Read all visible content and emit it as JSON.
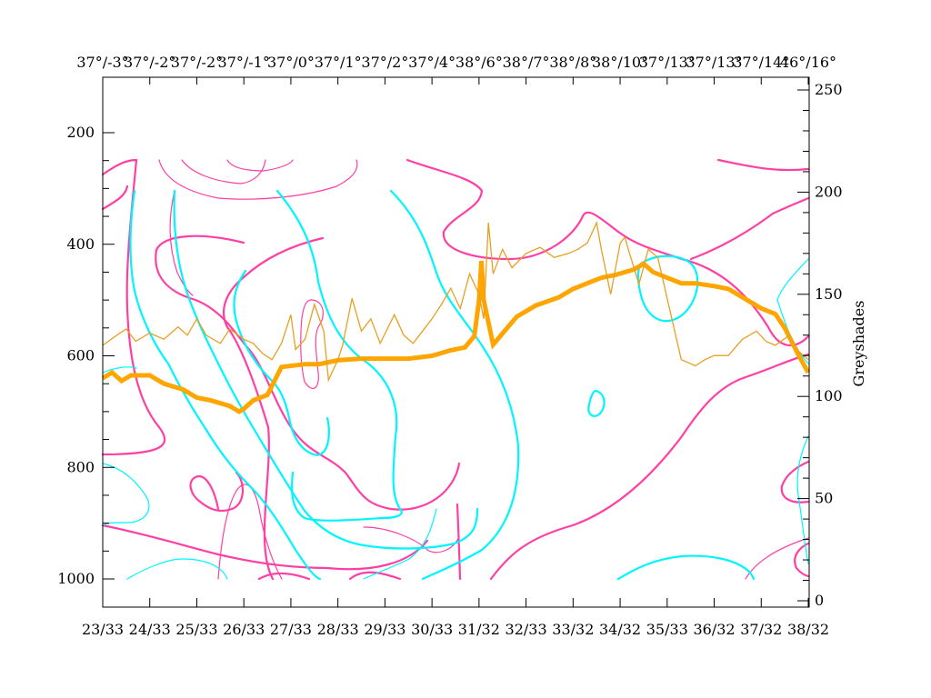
{
  "chart_data": {
    "type": "line",
    "title": "",
    "top_axis_labels": [
      "37°/-3°",
      "37°/-2°",
      "37°/-2°",
      "37°/-1°",
      "37°/0°",
      "37°/1°",
      "37°/2°",
      "37°/4°",
      "38°/6°",
      "38°/7°",
      "38°/8°",
      "38°/10°",
      "37°/13°",
      "37°/13°",
      "37°/14°",
      "46°/16°"
    ],
    "x_tick_labels": [
      "23/33",
      "24/33",
      "25/33",
      "26/33",
      "27/33",
      "28/33",
      "29/33",
      "30/33",
      "31/32",
      "32/33",
      "33/32",
      "34/32",
      "35/33",
      "36/32",
      "37/32",
      "38/32"
    ],
    "xlim": [
      23,
      38
    ],
    "left_axis": {
      "label": "",
      "ticks": [
        200,
        400,
        600,
        800,
        1000
      ],
      "lim": [
        1050,
        130
      ]
    },
    "right_axis": {
      "label": "Greyshades",
      "ticks": [
        0,
        50,
        100,
        150,
        200,
        250
      ],
      "lim": [
        0,
        255
      ]
    },
    "series": [
      {
        "color": "#ffa500",
        "axis": "left",
        "x": [
          23,
          23.2,
          23.4,
          23.6,
          24,
          24.3,
          24.7,
          25,
          25.3,
          25.7,
          25.9,
          26,
          26.2,
          26.5,
          26.8,
          27.3,
          27.6,
          28,
          28.5,
          29,
          29.5,
          30,
          30.4,
          30.7,
          30.9,
          31,
          31.05,
          31.1,
          31.3,
          31.5,
          31.8,
          32.2,
          32.7,
          33,
          33.3,
          33.6,
          33.9,
          34.3,
          34.5,
          34.7,
          35.3,
          35.6,
          36,
          36.3,
          36.5,
          36.8,
          37,
          37.3,
          37.5,
          37.8,
          38
        ],
        "y": [
          640,
          630,
          645,
          635,
          635,
          650,
          660,
          675,
          680,
          690,
          700,
          695,
          680,
          670,
          620,
          615,
          615,
          608,
          605,
          605,
          605,
          600,
          590,
          585,
          565,
          500,
          430,
          500,
          580,
          560,
          530,
          510,
          495,
          480,
          470,
          460,
          455,
          445,
          435,
          450,
          470,
          470,
          475,
          480,
          490,
          505,
          515,
          525,
          550,
          600,
          630
        ]
      },
      {
        "color": "#e6a023",
        "axis": "right",
        "x": [
          23,
          23.3,
          23.5,
          23.7,
          24,
          24.3,
          24.6,
          24.8,
          25,
          25.2,
          25.5,
          25.7,
          26,
          26.2,
          26.4,
          26.6,
          26.8,
          27,
          27.1,
          27.3,
          27.5,
          27.7,
          27.8,
          28,
          28.1,
          28.3,
          28.5,
          28.7,
          28.9,
          29.2,
          29.4,
          29.6,
          29.8,
          30,
          30.2,
          30.4,
          30.6,
          30.8,
          31,
          31.1,
          31.2,
          31.3,
          31.5,
          31.7,
          32,
          32.3,
          32.6,
          32.9,
          33.1,
          33.3,
          33.5,
          33.6,
          33.8,
          34,
          34.1,
          34.2,
          34.4,
          34.6,
          34.8,
          35,
          35.3,
          35.6,
          35.8,
          36,
          36.3,
          36.6,
          36.9,
          37.1,
          37.3,
          37.6,
          37.8,
          38
        ],
        "y": [
          125,
          130,
          133,
          127,
          131,
          128,
          134,
          130,
          138,
          130,
          126,
          133,
          128,
          126,
          121,
          118,
          126,
          140,
          123,
          128,
          145,
          132,
          108,
          118,
          125,
          148,
          132,
          138,
          126,
          140,
          130,
          126,
          132,
          138,
          145,
          153,
          143,
          160,
          150,
          138,
          185,
          160,
          172,
          163,
          170,
          173,
          168,
          170,
          172,
          175,
          185,
          172,
          150,
          175,
          178,
          170,
          155,
          172,
          168,
          148,
          118,
          115,
          118,
          120,
          120,
          128,
          132,
          127,
          125,
          130,
          122,
          118
        ]
      }
    ]
  }
}
